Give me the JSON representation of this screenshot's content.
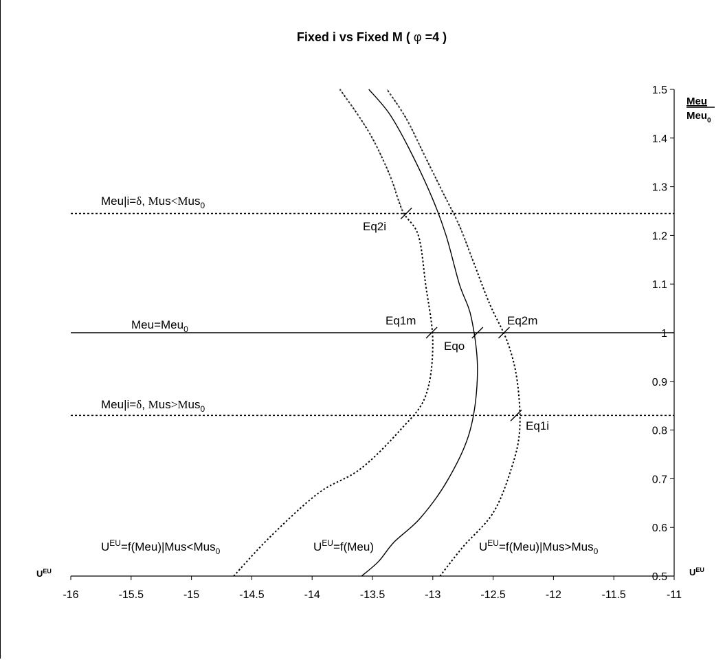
{
  "chart_data": {
    "type": "line",
    "title": "Fixed i vs Fixed M ( φ =4 )",
    "xlabel_left": "Uᴱᵁ",
    "xlabel_right": "Uᴱᵁ",
    "ylabel_top": "Meu",
    "ylabel_bottom": "Meu₀",
    "xlim": [
      -16,
      -11
    ],
    "ylim": [
      0.5,
      1.5
    ],
    "x_ticks": [
      "-16",
      "-15.5",
      "-15",
      "-14.5",
      "-14",
      "-13.5",
      "-13",
      "-12.5",
      "-12",
      "-11.5",
      "-11"
    ],
    "y_ticks": [
      "0.5",
      "0.6",
      "0.7",
      "0.8",
      "0.9",
      "1",
      "1.1",
      "1.2",
      "1.3",
      "1.4",
      "1.5"
    ],
    "grid": false,
    "series": [
      {
        "name": "Uᴱᵁ=f(Meu)",
        "style": "solid",
        "points": [
          [
            -13.59,
            0.5
          ],
          [
            -13.45,
            0.53
          ],
          [
            -13.32,
            0.57
          ],
          [
            -13.1,
            0.62
          ],
          [
            -12.87,
            0.7
          ],
          [
            -12.69,
            0.8
          ],
          [
            -12.63,
            0.92
          ],
          [
            -12.68,
            1.03
          ],
          [
            -12.78,
            1.1
          ],
          [
            -12.89,
            1.2
          ],
          [
            -13.01,
            1.28
          ],
          [
            -13.2,
            1.38
          ],
          [
            -13.36,
            1.45
          ],
          [
            -13.53,
            1.5
          ]
        ]
      },
      {
        "name": "Uᴱᵁ=f(Meu)|Mus<Mus₀",
        "style": "dotted",
        "points": [
          [
            -14.65,
            0.5
          ],
          [
            -14.35,
            0.58
          ],
          [
            -13.95,
            0.67
          ],
          [
            -13.6,
            0.72
          ],
          [
            -13.27,
            0.8
          ],
          [
            -13.06,
            0.87
          ],
          [
            -13.0,
            0.98
          ],
          [
            -13.06,
            1.1
          ],
          [
            -13.12,
            1.2
          ],
          [
            -13.25,
            1.25
          ],
          [
            -13.35,
            1.32
          ],
          [
            -13.48,
            1.39
          ],
          [
            -13.6,
            1.44
          ],
          [
            -13.77,
            1.5
          ]
        ]
      },
      {
        "name": "Uᴱᵁ=f(Meu)|Mus>Mus₀",
        "style": "dotted",
        "points": [
          [
            -12.94,
            0.5
          ],
          [
            -12.75,
            0.56
          ],
          [
            -12.5,
            0.63
          ],
          [
            -12.35,
            0.72
          ],
          [
            -12.28,
            0.8
          ],
          [
            -12.3,
            0.9
          ],
          [
            -12.38,
            0.98
          ],
          [
            -12.53,
            1.06
          ],
          [
            -12.67,
            1.15
          ],
          [
            -12.78,
            1.22
          ],
          [
            -12.92,
            1.29
          ],
          [
            -13.06,
            1.36
          ],
          [
            -13.22,
            1.44
          ],
          [
            -13.38,
            1.5
          ]
        ]
      }
    ],
    "reference_lines": [
      {
        "label": "Meu|i=δ, Mus<Mus₀",
        "y": 1.245,
        "style": "dotted"
      },
      {
        "label": "Meu=Meu₀",
        "y": 1.0,
        "style": "solid"
      },
      {
        "label": "Meu|i=δ, Mus>Mus₀",
        "y": 0.83,
        "style": "dotted"
      }
    ],
    "annotations": [
      {
        "label": "Eq2i",
        "x": -13.22,
        "y": 1.245
      },
      {
        "label": "Eq1m",
        "x": -13.01,
        "y": 1.0
      },
      {
        "label": "Eqo",
        "x": -12.63,
        "y": 1.0
      },
      {
        "label": "Eq2m",
        "x": -12.41,
        "y": 1.0
      },
      {
        "label": "Eq1i",
        "x": -12.31,
        "y": 0.83
      }
    ]
  },
  "text": {
    "title": "Fixed i vs Fixed M ( φ =4 )",
    "title_main": "Fixed i vs Fixed M ( ",
    "title_phi": "φ",
    "title_tail": " =4 )",
    "xname_left_base": "U",
    "xname_left_sup": "EU",
    "xname_right_base": "U",
    "xname_right_sup": "EU",
    "yname_top": "Meu",
    "yname_bottom_base": "Meu",
    "yname_bottom_sub": "0",
    "ref1_a": "Meu|i=",
    "ref1_delta": "δ",
    "ref1_b": ", ",
    "ref1_M1": "M",
    "ref1_c": "us",
    "ref1_lt": "<",
    "ref1_M2": "M",
    "ref1_d": "us",
    "ref1_sub": "0",
    "ref2_a": "Meu=Meu",
    "ref2_sub": "0",
    "ref3_a": "Meu|i=",
    "ref3_delta": "δ",
    "ref3_b": ", ",
    "ref3_M1": "M",
    "ref3_c": "us",
    "ref3_gt": ">",
    "ref3_M2": "M",
    "ref3_d": "us",
    "ref3_sub": "0",
    "s2_base": "U",
    "s2_sup": "EU",
    "s2_tail": "=f(Meu)|Mus<Mus",
    "s2_sub": "0",
    "s1_base": "U",
    "s1_sup": "EU",
    "s1_tail": "=f(Meu)",
    "s3_base": "U",
    "s3_sup": "EU",
    "s3_tail": "=f(Meu)|Mus>Mus",
    "s3_sub": "0",
    "eq2i": "Eq2i",
    "eq1m": "Eq1m",
    "eqo": "Eqo",
    "eq2m": "Eq2m",
    "eq1i": "Eq1i"
  }
}
